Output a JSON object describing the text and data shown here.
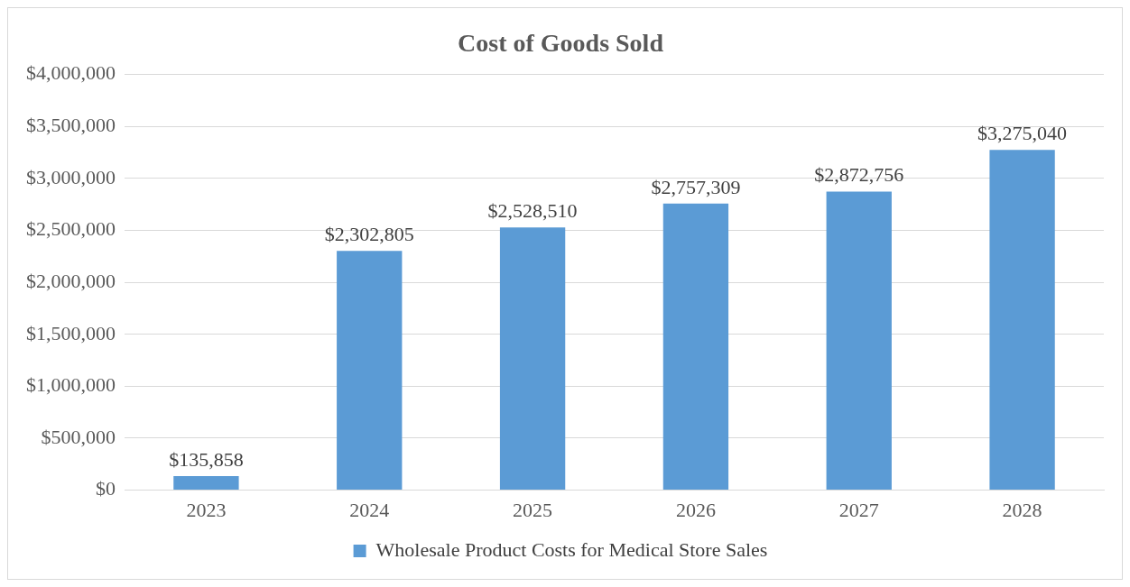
{
  "chart_data": {
    "type": "bar",
    "title": "Cost of Goods Sold",
    "categories": [
      "2023",
      "2024",
      "2025",
      "2026",
      "2027",
      "2028"
    ],
    "series": [
      {
        "name": "Wholesale Product Costs for Medical Store Sales",
        "color": "#5b9bd5",
        "values": [
          135858,
          2302805,
          2528510,
          2757309,
          2872756,
          3275040
        ],
        "value_labels": [
          "$135,858",
          "$2,302,805",
          "$2,528,510",
          "$2,757,309",
          "$2,872,756",
          "$3,275,040"
        ]
      }
    ],
    "ylim": [
      0,
      4000000
    ],
    "yticks": [
      {
        "value": 0,
        "label": "$0"
      },
      {
        "value": 500000,
        "label": "$500,000"
      },
      {
        "value": 1000000,
        "label": "$1,000,000"
      },
      {
        "value": 1500000,
        "label": "$1,500,000"
      },
      {
        "value": 2000000,
        "label": "$2,000,000"
      },
      {
        "value": 2500000,
        "label": "$2,500,000"
      },
      {
        "value": 3000000,
        "label": "$3,000,000"
      },
      {
        "value": 3500000,
        "label": "$3,500,000"
      },
      {
        "value": 4000000,
        "label": "$4,000,000"
      }
    ],
    "grid": "y",
    "legend": "bottom"
  }
}
